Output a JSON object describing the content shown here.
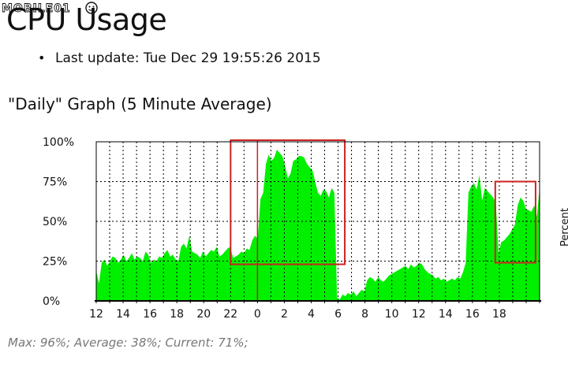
{
  "watermark": {
    "text": "MOBILE01"
  },
  "page_title": "CPU Usage",
  "update": {
    "label": "Last update: Tue Dec 29 19:55:26 2015"
  },
  "graph_heading": "\"Daily\" Graph (5 Minute Average)",
  "stats": "Max: 96%; Average: 38%; Current: 71%;",
  "colors": {
    "fill": "#00f000",
    "highlight": "#cc2222",
    "axis": "#000000",
    "grid": "#000000"
  },
  "chart_data": {
    "type": "area",
    "title": "\"Daily\" Graph (5 Minute Average)",
    "ylabel": "Percent",
    "xlabel": "",
    "ylim": [
      0,
      100
    ],
    "yticks": [
      0,
      25,
      50,
      75,
      100
    ],
    "ytick_labels": [
      "0%",
      "25%",
      "50%",
      "75%",
      "100%"
    ],
    "x_hours_start": 12,
    "x_hours_span": 33,
    "xtick_labels": [
      "12",
      "14",
      "16",
      "18",
      "20",
      "22",
      "0",
      "2",
      "4",
      "6",
      "8",
      "10",
      "12",
      "14",
      "16",
      "18"
    ],
    "grid": true,
    "values": [
      19,
      11,
      24,
      26,
      22,
      25,
      28,
      27,
      24,
      26,
      29,
      25,
      27,
      30,
      26,
      28,
      27,
      25,
      31,
      29,
      24,
      26,
      25,
      28,
      27,
      30,
      32,
      28,
      29,
      26,
      25,
      34,
      36,
      33,
      41,
      31,
      30,
      29,
      27,
      31,
      28,
      30,
      32,
      31,
      34,
      28,
      29,
      31,
      33,
      34,
      27,
      28,
      29,
      31,
      30,
      33,
      32,
      38,
      41,
      39,
      64,
      68,
      86,
      92,
      88,
      90,
      95,
      93,
      91,
      85,
      77,
      80,
      88,
      89,
      91,
      91,
      90,
      86,
      84,
      82,
      75,
      68,
      66,
      70,
      69,
      65,
      71,
      68,
      2,
      1,
      4,
      3,
      5,
      4,
      6,
      3,
      5,
      7,
      6,
      13,
      15,
      14,
      12,
      15,
      13,
      12,
      14,
      16,
      17,
      18,
      19,
      20,
      21,
      22,
      20,
      23,
      21,
      22,
      24,
      23,
      20,
      18,
      17,
      16,
      14,
      15,
      13,
      14,
      12,
      13,
      14,
      13,
      15,
      14,
      18,
      24,
      68,
      72,
      74,
      70,
      79,
      63,
      71,
      69,
      67,
      65,
      62,
      30,
      37,
      38,
      40,
      42,
      45,
      48,
      60,
      65,
      63,
      58,
      57,
      56,
      60,
      53,
      71
    ],
    "highlight_boxes": [
      {
        "x_start_hour": 22,
        "x_end_hour": 30.5,
        "y_bottom": 23,
        "y_top": 101
      },
      {
        "x_start_hour": 41.7,
        "x_end_hour": 44.7,
        "y_bottom": 24,
        "y_top": 75
      }
    ]
  }
}
